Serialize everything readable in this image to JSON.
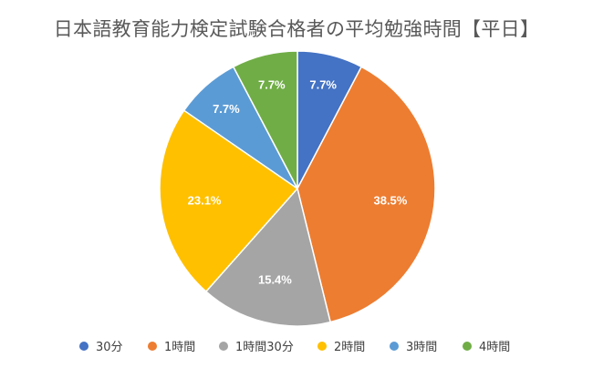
{
  "chart_data": {
    "type": "pie",
    "title": "日本語教育能力検定試験合格者の平均勉強時間【平日】",
    "categories": [
      "30分",
      "1時間",
      "1時間30分",
      "2時間",
      "3時間",
      "4時間"
    ],
    "values": [
      7.7,
      38.5,
      15.4,
      23.1,
      7.7,
      7.7
    ],
    "labels": [
      "7.7%",
      "38.5%",
      "15.4%",
      "23.1%",
      "7.7%",
      "7.7%"
    ],
    "colors": [
      "#4472C4",
      "#ED7D31",
      "#A5A5A5",
      "#FFC000",
      "#5B9BD5",
      "#70AD47"
    ],
    "start": "top, clockwise",
    "legend_position": "bottom"
  }
}
